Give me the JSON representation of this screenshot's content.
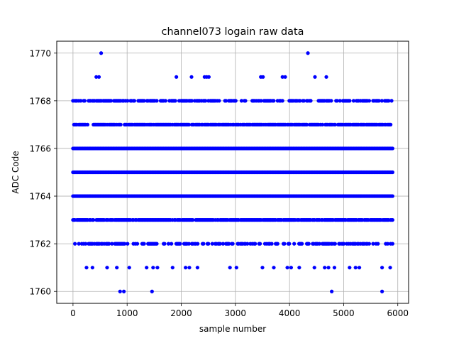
{
  "chart_data": {
    "type": "scatter",
    "title": "channel073 logain raw data",
    "xlabel": "sample number",
    "ylabel": "ADC Code",
    "xlim": [
      -300,
      6200
    ],
    "ylim": [
      1759.5,
      1770.5
    ],
    "xticks": [
      0,
      1000,
      2000,
      3000,
      4000,
      5000,
      6000
    ],
    "yticks": [
      1760,
      1762,
      1764,
      1766,
      1768,
      1770
    ],
    "grid": true,
    "marker_color": "#0000ff",
    "series": [
      {
        "color": "#0000ff",
        "points": [
          [
            520,
            1770
          ],
          [
            4340,
            1770
          ],
          [
            430,
            1769
          ],
          [
            480,
            1769
          ],
          [
            1910,
            1769
          ],
          [
            2190,
            1769
          ],
          [
            2430,
            1769
          ],
          [
            2470,
            1769
          ],
          [
            2510,
            1769
          ],
          [
            3470,
            1769
          ],
          [
            3510,
            1769
          ],
          [
            3870,
            1769
          ],
          [
            3920,
            1769
          ],
          [
            4470,
            1769
          ],
          [
            4680,
            1769
          ],
          [
            250,
            1761
          ],
          [
            360,
            1761
          ],
          [
            630,
            1761
          ],
          [
            810,
            1761
          ],
          [
            1040,
            1761
          ],
          [
            1360,
            1761
          ],
          [
            1480,
            1761
          ],
          [
            1560,
            1761
          ],
          [
            1840,
            1761
          ],
          [
            2080,
            1761
          ],
          [
            2150,
            1761
          ],
          [
            2300,
            1761
          ],
          [
            2900,
            1761
          ],
          [
            3020,
            1761
          ],
          [
            3500,
            1761
          ],
          [
            3710,
            1761
          ],
          [
            3960,
            1761
          ],
          [
            4030,
            1761
          ],
          [
            4180,
            1761
          ],
          [
            4460,
            1761
          ],
          [
            4650,
            1761
          ],
          [
            4720,
            1761
          ],
          [
            4830,
            1761
          ],
          [
            5110,
            1761
          ],
          [
            5220,
            1761
          ],
          [
            5290,
            1761
          ],
          [
            5710,
            1761
          ],
          [
            5860,
            1761
          ],
          [
            870,
            1760
          ],
          [
            940,
            1760
          ],
          [
            1460,
            1760
          ],
          [
            4780,
            1760
          ],
          [
            5710,
            1760
          ]
        ],
        "dense_rows": [
          {
            "y": 1768,
            "x_range": [
              0,
              5920
            ],
            "density": 0.55
          },
          {
            "y": 1767,
            "x_range": [
              0,
              5920
            ],
            "density": 0.8
          },
          {
            "y": 1766,
            "x_range": [
              0,
              5920
            ],
            "density": 1.0
          },
          {
            "y": 1765,
            "x_range": [
              0,
              5920
            ],
            "density": 1.0
          },
          {
            "y": 1764,
            "x_range": [
              0,
              5920
            ],
            "density": 1.0
          },
          {
            "y": 1763,
            "x_range": [
              0,
              5920
            ],
            "density": 0.85
          },
          {
            "y": 1762,
            "x_range": [
              0,
              5920
            ],
            "density": 0.5
          }
        ]
      }
    ]
  }
}
